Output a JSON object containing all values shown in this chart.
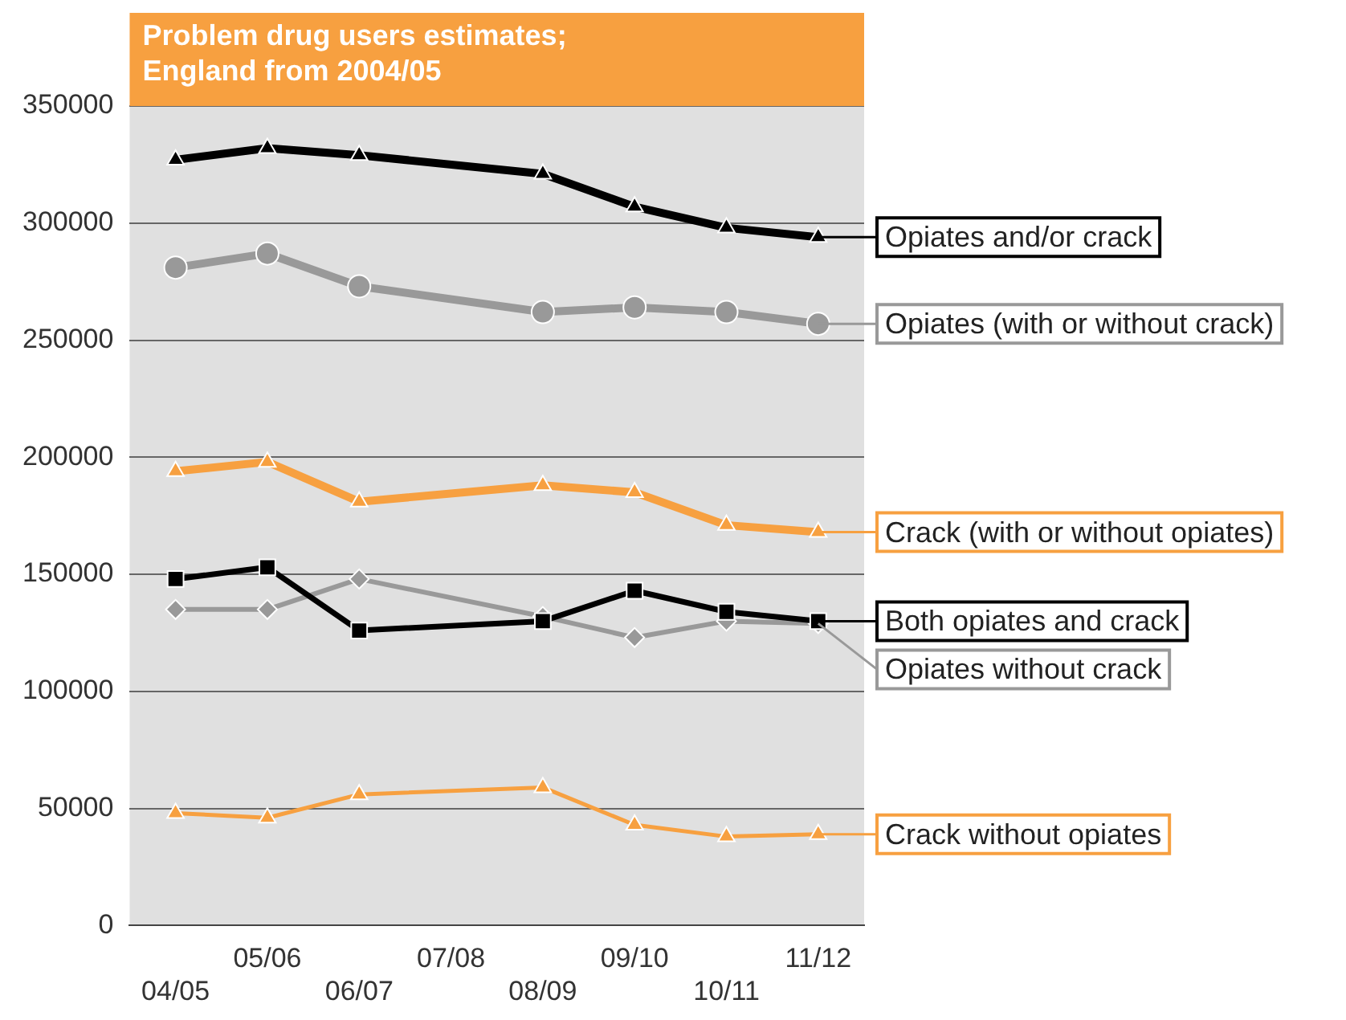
{
  "chart_data": {
    "type": "line",
    "title": "Problem drug users estimates;\nEngland from 2004/05",
    "categories": [
      "04/05",
      "05/06",
      "06/07",
      "07/08",
      "08/09",
      "09/10",
      "10/11",
      "11/12"
    ],
    "series": [
      {
        "name": "Opiates and/or crack",
        "color": "#000000",
        "marker": "triangle",
        "values": [
          327000,
          332000,
          329000,
          null,
          321000,
          307000,
          298000,
          294000
        ]
      },
      {
        "name": "Opiates (with or without crack)",
        "color": "#999999",
        "marker": "circle",
        "values": [
          281000,
          287000,
          273000,
          null,
          262000,
          264000,
          262000,
          257000
        ]
      },
      {
        "name": "Crack (with or without opiates)",
        "color": "#f7a040",
        "marker": "triangle",
        "values": [
          194000,
          198000,
          181000,
          null,
          188000,
          185000,
          171000,
          168000
        ]
      },
      {
        "name": "Both opiates and crack",
        "color": "#000000",
        "marker": "square",
        "values": [
          148000,
          153000,
          126000,
          null,
          130000,
          143000,
          134000,
          130000
        ]
      },
      {
        "name": "Opiates without crack",
        "color": "#999999",
        "marker": "diamond",
        "values": [
          135000,
          135000,
          148000,
          null,
          132000,
          123000,
          130000,
          129000
        ]
      },
      {
        "name": "Crack without opiates",
        "color": "#f7a040",
        "marker": "triangle",
        "values": [
          48000,
          46000,
          56000,
          null,
          59000,
          43000,
          38000,
          39000
        ]
      }
    ],
    "ylim": [
      0,
      350000
    ],
    "yticks": [
      0,
      50000,
      100000,
      150000,
      200000,
      250000,
      300000,
      350000
    ],
    "grid": "y",
    "legend": "right"
  }
}
